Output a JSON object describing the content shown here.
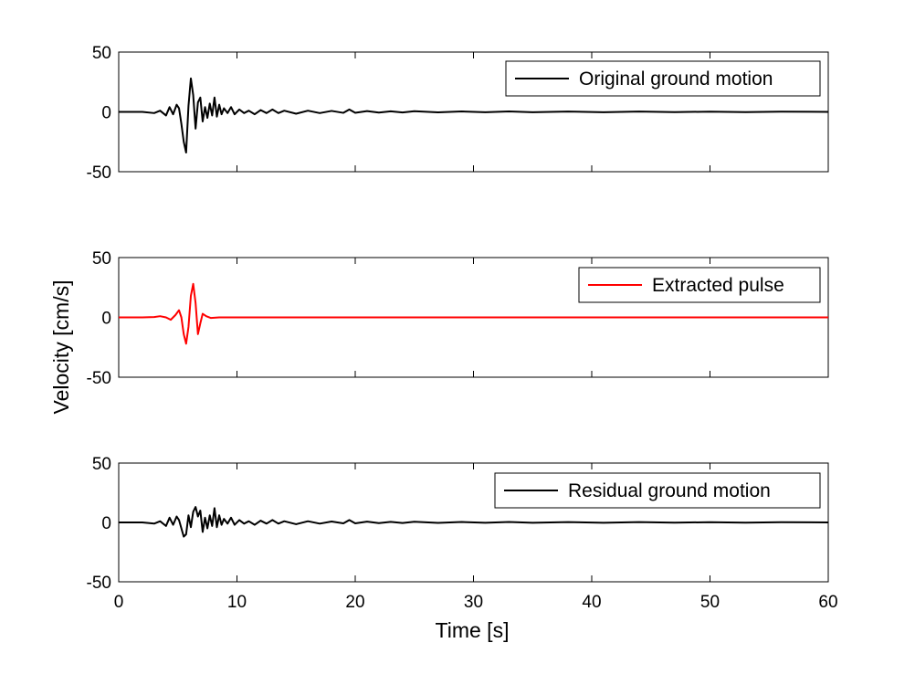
{
  "chart_data": {
    "type": "line",
    "xlabel": "Time [s]",
    "ylabel": "Velocity [cm/s]",
    "xlim": [
      0,
      60
    ],
    "ylim": [
      -50,
      50
    ],
    "xticks": [
      0,
      10,
      20,
      30,
      40,
      50,
      60
    ],
    "yticks": [
      -50,
      0,
      50
    ],
    "grid": false,
    "panels": [
      {
        "legend": "Original ground motion",
        "legend_placement": "top-right",
        "color": "#000000",
        "x": [
          0,
          2,
          3,
          3.5,
          4,
          4.3,
          4.6,
          4.9,
          5.1,
          5.3,
          5.5,
          5.7,
          5.9,
          6.1,
          6.3,
          6.5,
          6.7,
          6.9,
          7.1,
          7.3,
          7.5,
          7.7,
          7.9,
          8.1,
          8.3,
          8.5,
          8.7,
          8.9,
          9.2,
          9.5,
          9.8,
          10.2,
          10.6,
          11,
          11.5,
          12,
          12.5,
          13,
          13.5,
          14,
          15,
          16,
          17,
          18,
          19,
          19.5,
          20,
          21,
          22,
          23,
          24,
          25,
          27,
          29,
          31,
          33,
          35,
          38,
          41,
          44,
          47,
          50,
          53,
          56,
          60
        ],
        "y": [
          0,
          0,
          -1,
          1,
          -3,
          4,
          -2,
          6,
          3,
          -10,
          -25,
          -34,
          5,
          28,
          14,
          -14,
          8,
          12,
          -8,
          4,
          -5,
          7,
          -3,
          12,
          -4,
          6,
          -2,
          3,
          -1,
          4,
          -2,
          2,
          -1,
          1,
          -2,
          1.5,
          -1,
          2,
          -1,
          1,
          -1.5,
          1,
          -1,
          0.8,
          -0.8,
          2,
          -0.8,
          0.7,
          -0.6,
          0.5,
          -0.5,
          0.6,
          -0.4,
          0.4,
          -0.3,
          0.4,
          -0.3,
          0.3,
          -0.3,
          0.3,
          -0.2,
          0.2,
          -0.2,
          0.2,
          0
        ]
      },
      {
        "legend": "Extracted pulse",
        "legend_placement": "top-right",
        "color": "#ff0000",
        "x": [
          0,
          2,
          3,
          3.5,
          4,
          4.4,
          4.8,
          5.1,
          5.3,
          5.5,
          5.7,
          5.9,
          6.1,
          6.3,
          6.5,
          6.7,
          6.9,
          7.1,
          7.4,
          7.8,
          8.5,
          10,
          60
        ],
        "y": [
          0,
          0,
          0.3,
          1,
          0,
          -2,
          2,
          6,
          0,
          -14,
          -22,
          -8,
          18,
          28,
          12,
          -14,
          -5,
          3,
          1,
          -0.5,
          0,
          0,
          0
        ]
      },
      {
        "legend": "Residual ground motion",
        "legend_placement": "top-right",
        "color": "#000000",
        "x": [
          0,
          2,
          3,
          3.5,
          4,
          4.3,
          4.6,
          4.9,
          5.1,
          5.3,
          5.5,
          5.7,
          5.9,
          6.1,
          6.3,
          6.5,
          6.7,
          6.9,
          7.1,
          7.3,
          7.5,
          7.7,
          7.9,
          8.1,
          8.3,
          8.5,
          8.7,
          8.9,
          9.2,
          9.5,
          9.8,
          10.2,
          10.6,
          11,
          11.5,
          12,
          12.5,
          13,
          13.5,
          14,
          15,
          16,
          17,
          18,
          19,
          19.5,
          20,
          21,
          22,
          23,
          24,
          25,
          27,
          29,
          31,
          33,
          35,
          38,
          41,
          44,
          47,
          50,
          53,
          56,
          60
        ],
        "y": [
          0,
          0,
          -1,
          1,
          -3,
          4,
          -2,
          5,
          2,
          -5,
          -12,
          -10,
          6,
          -4,
          9,
          13,
          5,
          10,
          -8,
          4,
          -5,
          6,
          -3,
          12,
          -4,
          6,
          -2,
          3,
          -1,
          4,
          -2,
          2,
          -1,
          1,
          -2,
          1.5,
          -1,
          2,
          -1,
          1,
          -1.5,
          1,
          -1,
          0.8,
          -0.8,
          2,
          -0.8,
          0.7,
          -0.6,
          0.5,
          -0.5,
          0.6,
          -0.4,
          0.4,
          -0.3,
          0.4,
          -0.3,
          0.3,
          -0.3,
          0.3,
          -0.2,
          0.2,
          -0.2,
          0.2,
          0
        ]
      }
    ]
  }
}
